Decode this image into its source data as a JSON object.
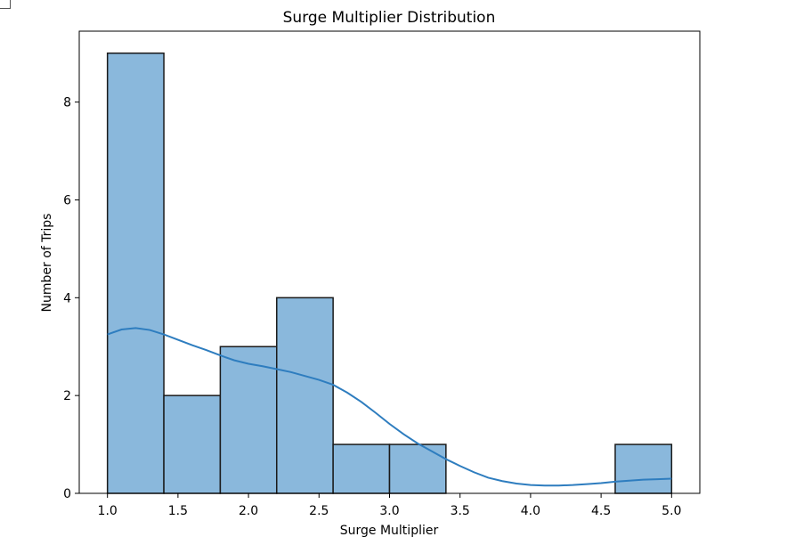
{
  "chart_data": {
    "type": "bar",
    "title": "Surge Multiplier Distribution",
    "xlabel": "Surge Multiplier",
    "ylabel": "Number of Trips",
    "xlim": [
      0.8,
      5.2
    ],
    "ylim": [
      0,
      9.45
    ],
    "xticks": [
      1.0,
      1.5,
      2.0,
      2.5,
      3.0,
      3.5,
      4.0,
      4.5,
      5.0
    ],
    "xtick_labels": [
      "1.0",
      "1.5",
      "2.0",
      "2.5",
      "3.0",
      "3.5",
      "4.0",
      "4.5",
      "5.0"
    ],
    "yticks": [
      0,
      2,
      4,
      6,
      8
    ],
    "ytick_labels": [
      "0",
      "2",
      "4",
      "6",
      "8"
    ],
    "bins": [
      {
        "start": 1.0,
        "end": 1.4,
        "count": 9
      },
      {
        "start": 1.4,
        "end": 1.8,
        "count": 2
      },
      {
        "start": 1.8,
        "end": 2.2,
        "count": 3
      },
      {
        "start": 2.2,
        "end": 2.6,
        "count": 4
      },
      {
        "start": 2.6,
        "end": 3.0,
        "count": 1
      },
      {
        "start": 3.0,
        "end": 3.4,
        "count": 1
      },
      {
        "start": 3.4,
        "end": 3.8,
        "count": 0
      },
      {
        "start": 3.8,
        "end": 4.2,
        "count": 0
      },
      {
        "start": 4.2,
        "end": 4.6,
        "count": 0
      },
      {
        "start": 4.6,
        "end": 5.0,
        "count": 1
      }
    ],
    "kde": {
      "x": [
        1.0,
        1.1,
        1.2,
        1.3,
        1.4,
        1.5,
        1.6,
        1.7,
        1.8,
        1.9,
        2.0,
        2.1,
        2.2,
        2.3,
        2.4,
        2.5,
        2.6,
        2.7,
        2.8,
        2.9,
        3.0,
        3.1,
        3.2,
        3.3,
        3.4,
        3.5,
        3.6,
        3.7,
        3.8,
        3.9,
        4.0,
        4.1,
        4.2,
        4.3,
        4.4,
        4.5,
        4.6,
        4.7,
        4.8,
        4.9,
        5.0
      ],
      "y": [
        3.25,
        3.35,
        3.38,
        3.34,
        3.25,
        3.14,
        3.03,
        2.93,
        2.82,
        2.72,
        2.65,
        2.6,
        2.54,
        2.48,
        2.4,
        2.32,
        2.22,
        2.06,
        1.87,
        1.65,
        1.42,
        1.21,
        1.02,
        0.86,
        0.7,
        0.56,
        0.43,
        0.32,
        0.25,
        0.2,
        0.17,
        0.16,
        0.16,
        0.17,
        0.19,
        0.21,
        0.24,
        0.26,
        0.28,
        0.29,
        0.3
      ]
    },
    "colors": {
      "bar_fill": "#8ab8dc",
      "bar_edge": "#1a1a1a",
      "kde_line": "#2e7dbf"
    },
    "grid": false
  }
}
